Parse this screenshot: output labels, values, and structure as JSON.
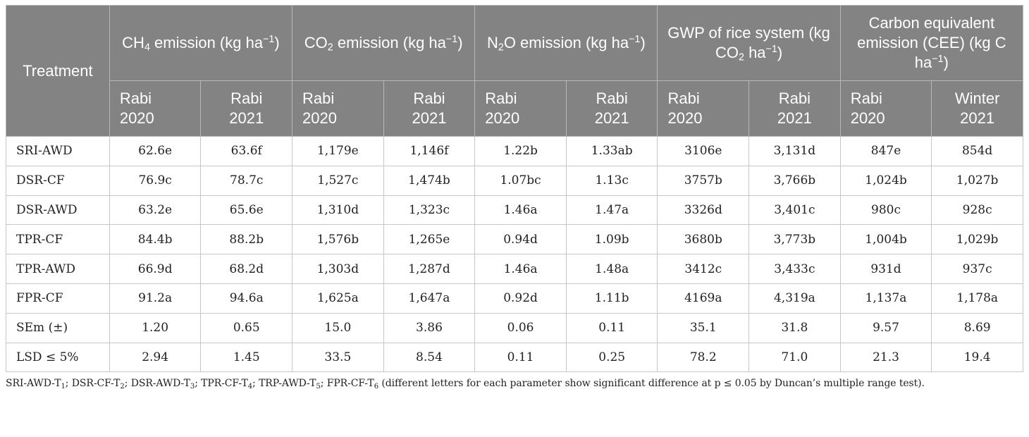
{
  "table": {
    "treatment_header": "Treatment",
    "groups": [
      {
        "label_parts": [
          "CH",
          "4",
          " emission (kg ha",
          "−1",
          ")"
        ]
      },
      {
        "label_parts": [
          "CO",
          "2",
          " emission (kg ha",
          "−1",
          ")"
        ]
      },
      {
        "label_parts": [
          "N",
          "2",
          "O emission (kg ha",
          "−1",
          ")"
        ]
      },
      {
        "label_parts": [
          "GWP of rice system (kg CO",
          "2",
          " ha",
          "−1",
          ")"
        ]
      },
      {
        "label_parts": [
          "Carbon equivalent emission (CEE) (kg C ha",
          "",
          "",
          "−1",
          ")"
        ]
      }
    ],
    "seasons": [
      [
        "Rabi",
        "2020"
      ],
      [
        "Rabi",
        "2021"
      ],
      [
        "Rabi",
        "2020"
      ],
      [
        "Rabi",
        "2021"
      ],
      [
        "Rabi",
        "2020"
      ],
      [
        "Rabi",
        "2021"
      ],
      [
        "Rabi",
        "2020"
      ],
      [
        "Rabi",
        "2021"
      ],
      [
        "Rabi",
        "2020"
      ],
      [
        "Winter",
        "2021"
      ]
    ],
    "rows": [
      [
        "SRI-AWD",
        "62.6e",
        "63.6f",
        "1,179e",
        "1,146f",
        "1.22b",
        "1.33ab",
        "3106e",
        "3,131d",
        "847e",
        "854d"
      ],
      [
        "DSR-CF",
        "76.9c",
        "78.7c",
        "1,527c",
        "1,474b",
        "1.07bc",
        "1.13c",
        "3757b",
        "3,766b",
        "1,024b",
        "1,027b"
      ],
      [
        "DSR-AWD",
        "63.2e",
        "65.6e",
        "1,310d",
        "1,323c",
        "1.46a",
        "1.47a",
        "3326d",
        "3,401c",
        "980c",
        "928c"
      ],
      [
        "TPR-CF",
        "84.4b",
        "88.2b",
        "1,576b",
        "1,265e",
        "0.94d",
        "1.09b",
        "3680b",
        "3,773b",
        "1,004b",
        "1,029b"
      ],
      [
        "TPR-AWD",
        "66.9d",
        "68.2d",
        "1,303d",
        "1,287d",
        "1.46a",
        "1.48a",
        "3412c",
        "3,433c",
        "931d",
        "937c"
      ],
      [
        "FPR-CF",
        "91.2a",
        "94.6a",
        "1,625a",
        "1,647a",
        "0.92d",
        "1.11b",
        "4169a",
        "4,319a",
        "1,137a",
        "1,178a"
      ],
      [
        "SEm (±)",
        "1.20",
        "0.65",
        "15.0",
        "3.86",
        "0.06",
        "0.11",
        "35.1",
        "31.8",
        "9.57",
        "8.69"
      ],
      [
        "LSD ≤ 5%",
        "2.94",
        "1.45",
        "33.5",
        "8.54",
        "0.11",
        "0.25",
        "78.2",
        "71.0",
        "21.3",
        "19.4"
      ]
    ]
  },
  "footnote": {
    "items": [
      [
        "SRI-AWD-T",
        "1",
        "; "
      ],
      [
        "DSR-CF-T",
        "2",
        "; "
      ],
      [
        "DSR-AWD-T",
        "3",
        "; "
      ],
      [
        "TPR-CF-T",
        "4",
        "; "
      ],
      [
        "TRP-AWD-T",
        "5",
        "; "
      ],
      [
        "FPR-CF-T",
        "6",
        " "
      ]
    ],
    "note": "(different letters for each parameter show significant difference at p ≤ 0.05 by Duncan’s multiple range test)."
  }
}
